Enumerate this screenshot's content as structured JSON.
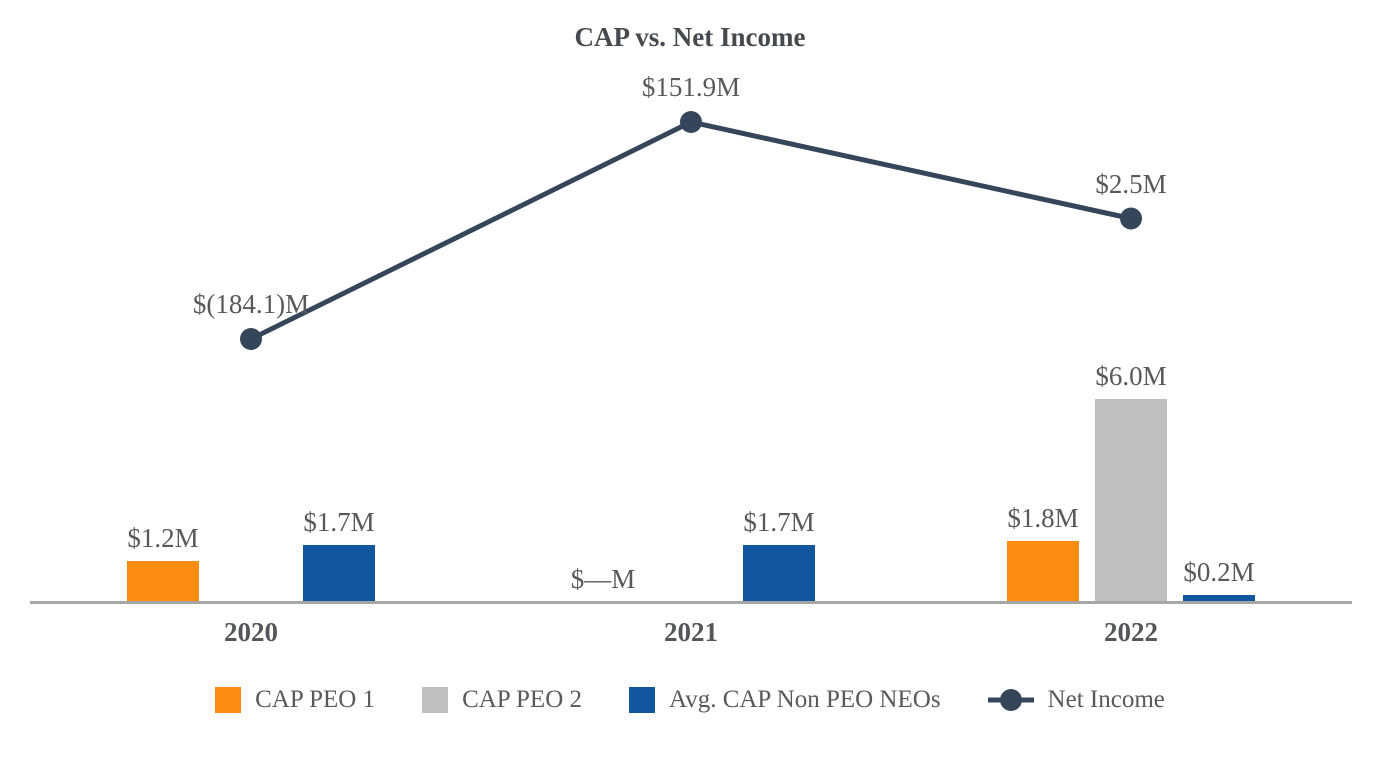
{
  "title": "CAP vs. Net Income",
  "colors": {
    "orange": "#f98c11",
    "gray": "#bfbfbf",
    "blue": "#11569e",
    "slate": "#36465a",
    "axis": "#a6a6a6",
    "label_text": "#595959",
    "title_text": "#47494f"
  },
  "chart_data": {
    "type": "combo-bar-line",
    "title": "CAP vs. Net Income",
    "categories": [
      "2020",
      "2021",
      "2022"
    ],
    "value_unit": "M USD",
    "grid": "off",
    "x_axis_baseline": true,
    "bar_series": [
      {
        "name": "CAP PEO 1",
        "color_key": "orange",
        "values": [
          1.2,
          0,
          1.8
        ],
        "labels": [
          "$1.2M",
          "$—M",
          "$1.8M"
        ]
      },
      {
        "name": "CAP PEO 2",
        "color_key": "gray",
        "values": [
          0,
          0,
          6.0
        ],
        "labels": [
          null,
          null,
          "$6.0M"
        ]
      },
      {
        "name": "Avg. CAP Non PEO NEOs",
        "color_key": "blue",
        "values": [
          1.7,
          1.7,
          0.2
        ],
        "labels": [
          "$1.7M",
          "$1.7M",
          "$0.2M"
        ]
      }
    ],
    "line_series": {
      "name": "Net Income",
      "color_key": "slate",
      "values": [
        -184.1,
        151.9,
        2.5
      ],
      "labels": [
        "$(184.1)M",
        "$151.9M",
        "$2.5M"
      ]
    },
    "legend": {
      "position": "bottom",
      "items": [
        {
          "label": "CAP PEO 1",
          "swatch": "square",
          "color_key": "orange"
        },
        {
          "label": "CAP PEO 2",
          "swatch": "square",
          "color_key": "gray"
        },
        {
          "label": "Avg. CAP Non PEO NEOs",
          "swatch": "square",
          "color_key": "blue"
        },
        {
          "label": "Net Income",
          "swatch": "line-dot",
          "color_key": "slate"
        }
      ]
    }
  }
}
